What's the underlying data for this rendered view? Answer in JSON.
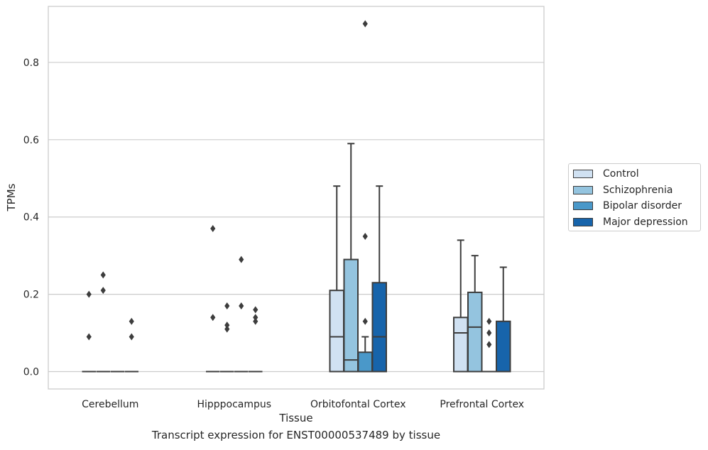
{
  "chart_data": {
    "type": "box",
    "caption": "Transcript expression for ENST00000537489 by tissue",
    "xlabel": "Tissue",
    "ylabel": "TPMs",
    "ylim": [
      -0.045,
      0.945
    ],
    "yticks": [
      0.0,
      0.2,
      0.4,
      0.6,
      0.8
    ],
    "ytick_labels": [
      "0.0",
      "0.2",
      "0.4",
      "0.6",
      "0.8"
    ],
    "grid": true,
    "legend_position": "right",
    "categories": [
      "Cerebellum",
      "Hipppocampus",
      "Orbitofontal Cortex",
      "Prefrontal Cortex"
    ],
    "series": [
      {
        "name": "Control",
        "color": "#d0e1f2",
        "boxes": [
          {
            "q1": 0,
            "median": 0,
            "q3": 0,
            "whisker_low": 0,
            "whisker_high": 0,
            "outliers": [
              0.09,
              0.2
            ]
          },
          {
            "q1": 0,
            "median": 0,
            "q3": 0,
            "whisker_low": 0,
            "whisker_high": 0,
            "outliers": [
              0.14,
              0.37
            ]
          },
          {
            "q1": 0,
            "median": 0.09,
            "q3": 0.21,
            "whisker_low": 0,
            "whisker_high": 0.48,
            "outliers": []
          },
          {
            "q1": 0,
            "median": 0.1,
            "q3": 0.14,
            "whisker_low": 0,
            "whisker_high": 0.34,
            "outliers": []
          }
        ]
      },
      {
        "name": "Schizophrenia",
        "color": "#94c4df",
        "boxes": [
          {
            "q1": 0,
            "median": 0,
            "q3": 0,
            "whisker_low": 0,
            "whisker_high": 0,
            "outliers": [
              0.21,
              0.25
            ]
          },
          {
            "q1": 0,
            "median": 0,
            "q3": 0,
            "whisker_low": 0,
            "whisker_high": 0,
            "outliers": [
              0.11,
              0.12,
              0.17
            ]
          },
          {
            "q1": 0,
            "median": 0.03,
            "q3": 0.29,
            "whisker_low": 0,
            "whisker_high": 0.59,
            "outliers": []
          },
          {
            "q1": 0,
            "median": 0.115,
            "q3": 0.205,
            "whisker_low": 0,
            "whisker_high": 0.3,
            "outliers": []
          }
        ]
      },
      {
        "name": "Bipolar disorder",
        "color": "#4a98c9",
        "boxes": [
          {
            "q1": 0,
            "median": 0,
            "q3": 0,
            "whisker_low": 0,
            "whisker_high": 0,
            "outliers": []
          },
          {
            "q1": 0,
            "median": 0,
            "q3": 0,
            "whisker_low": 0,
            "whisker_high": 0,
            "outliers": [
              0.17,
              0.29
            ]
          },
          {
            "q1": 0,
            "median": 0,
            "q3": 0.05,
            "whisker_low": 0,
            "whisker_high": 0.09,
            "outliers": [
              0.13,
              0.35,
              0.9
            ]
          },
          {
            "q1": 0,
            "median": 0,
            "q3": 0,
            "whisker_low": 0,
            "whisker_high": 0,
            "outliers": [
              0.07,
              0.1,
              0.13
            ]
          }
        ]
      },
      {
        "name": "Major depression",
        "color": "#1764ab",
        "boxes": [
          {
            "q1": 0,
            "median": 0,
            "q3": 0,
            "whisker_low": 0,
            "whisker_high": 0,
            "outliers": [
              0.09,
              0.13
            ]
          },
          {
            "q1": 0,
            "median": 0,
            "q3": 0,
            "whisker_low": 0,
            "whisker_high": 0,
            "outliers": [
              0.13,
              0.14,
              0.16
            ]
          },
          {
            "q1": 0,
            "median": 0.09,
            "q3": 0.23,
            "whisker_low": 0,
            "whisker_high": 0.48,
            "outliers": []
          },
          {
            "q1": 0,
            "median": 0,
            "q3": 0.13,
            "whisker_low": 0,
            "whisker_high": 0.27,
            "outliers": []
          }
        ]
      }
    ]
  }
}
